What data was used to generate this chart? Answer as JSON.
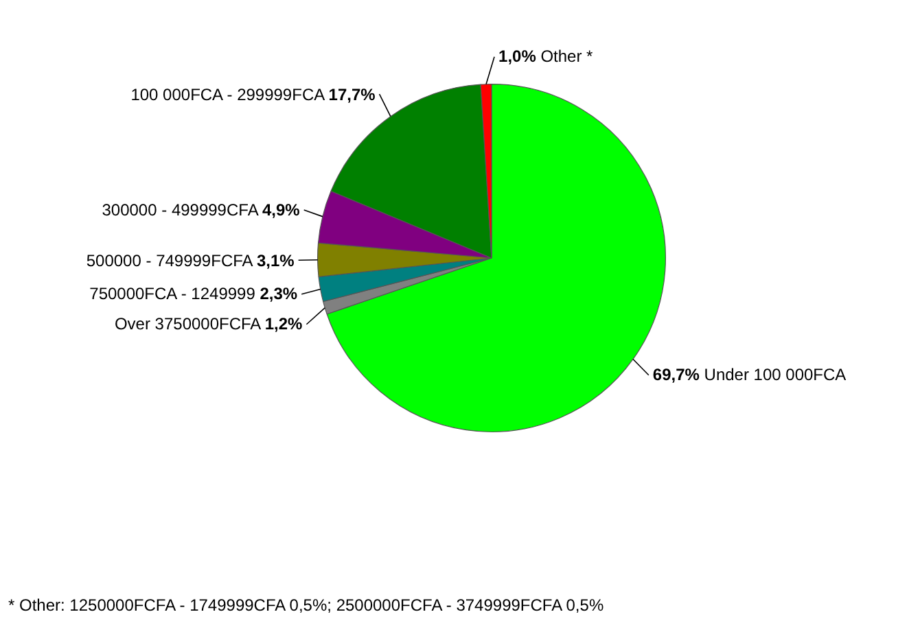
{
  "chart_data": {
    "type": "pie",
    "categories": [
      "Under 100 000FCA",
      "Over 3750000FCFA",
      "750000FCA - 1249999",
      "500000 - 749999FCFA",
      "300000 - 499999CFA",
      "100 000FCA - 299999FCA",
      "Other *"
    ],
    "values": [
      69.7,
      1.2,
      2.3,
      3.1,
      4.9,
      17.7,
      1.0
    ],
    "value_labels": [
      "69,7%",
      "1,2%",
      "2,3%",
      "3,1%",
      "4,9%",
      "17,7%",
      "1,0%"
    ],
    "colors": [
      "#00ff00",
      "#808080",
      "#008080",
      "#808000",
      "#800080",
      "#008000",
      "#ff0000"
    ],
    "legend": false,
    "annotations": [
      "* Other: 1250000FCFA - 1749999CFA 0,5%; 2500000FCFA - 3749999FCFA 0,5%"
    ]
  }
}
